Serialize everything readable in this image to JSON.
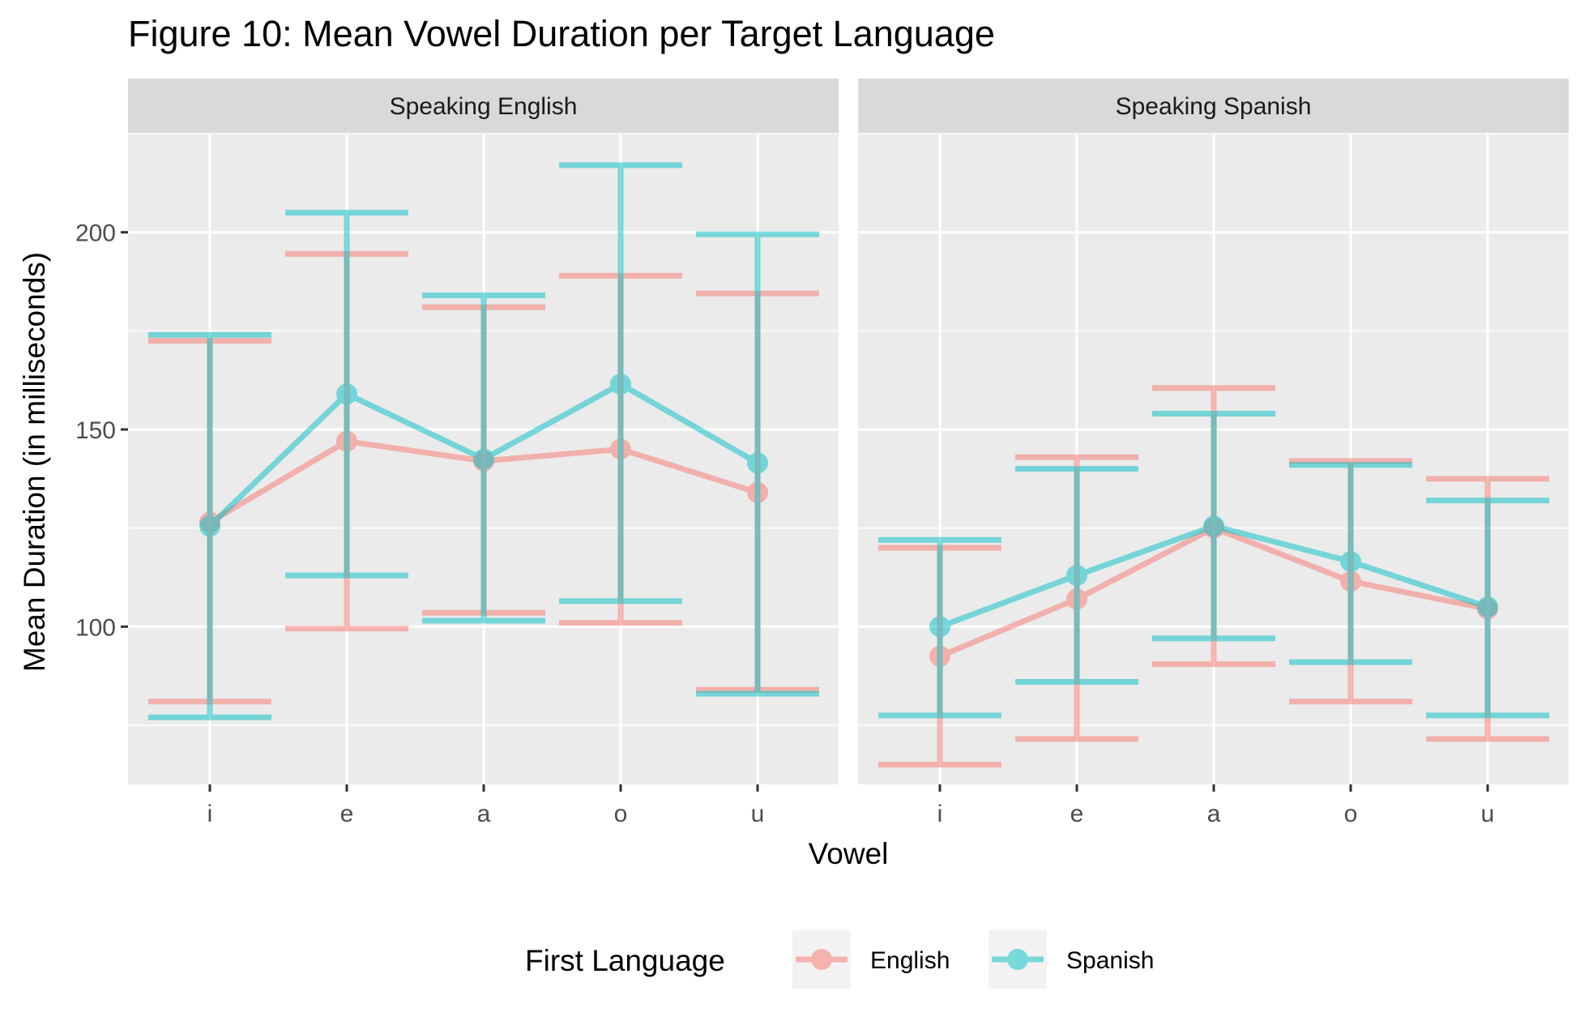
{
  "chart_data": {
    "type": "line",
    "title": "Figure 10: Mean Vowel Duration per Target Language",
    "xlabel": "Vowel",
    "ylabel": "Mean Duration (in milliseconds)",
    "categories": [
      "i",
      "e",
      "a",
      "o",
      "u"
    ],
    "ylim": [
      60,
      225
    ],
    "yticks": [
      100,
      150,
      200
    ],
    "grid": true,
    "error_bars": true,
    "legend": {
      "title": "First Language",
      "position": "bottom",
      "entries": [
        "English",
        "Spanish"
      ]
    },
    "colors": {
      "English": "#F8766D",
      "Spanish": "#00BFC4"
    },
    "panels": [
      {
        "title": "Speaking English",
        "series": [
          {
            "name": "English",
            "values": [
              126.5,
              147,
              142,
              145,
              134
            ],
            "lower": [
              81,
              99.5,
              103.5,
              101,
              84
            ],
            "upper": [
              172.5,
              194.5,
              181,
              189,
              184.5
            ]
          },
          {
            "name": "Spanish",
            "values": [
              125.5,
              159,
              142.5,
              161.5,
              141.5
            ],
            "lower": [
              77,
              113,
              101.5,
              106.5,
              83
            ],
            "upper": [
              174,
              205,
              184,
              217,
              199.5
            ]
          }
        ]
      },
      {
        "title": "Speaking Spanish",
        "series": [
          {
            "name": "English",
            "values": [
              92.5,
              107,
              125,
              111.5,
              104.5
            ],
            "lower": [
              65,
              71.5,
              90.5,
              81,
              71.5
            ],
            "upper": [
              120,
              143,
              160.5,
              142,
              137.5
            ]
          },
          {
            "name": "Spanish",
            "values": [
              100,
              113,
              125.5,
              116.5,
              105
            ],
            "lower": [
              77.5,
              86,
              97,
              91,
              77.5
            ],
            "upper": [
              122,
              140,
              154,
              141,
              132
            ]
          }
        ]
      }
    ]
  }
}
